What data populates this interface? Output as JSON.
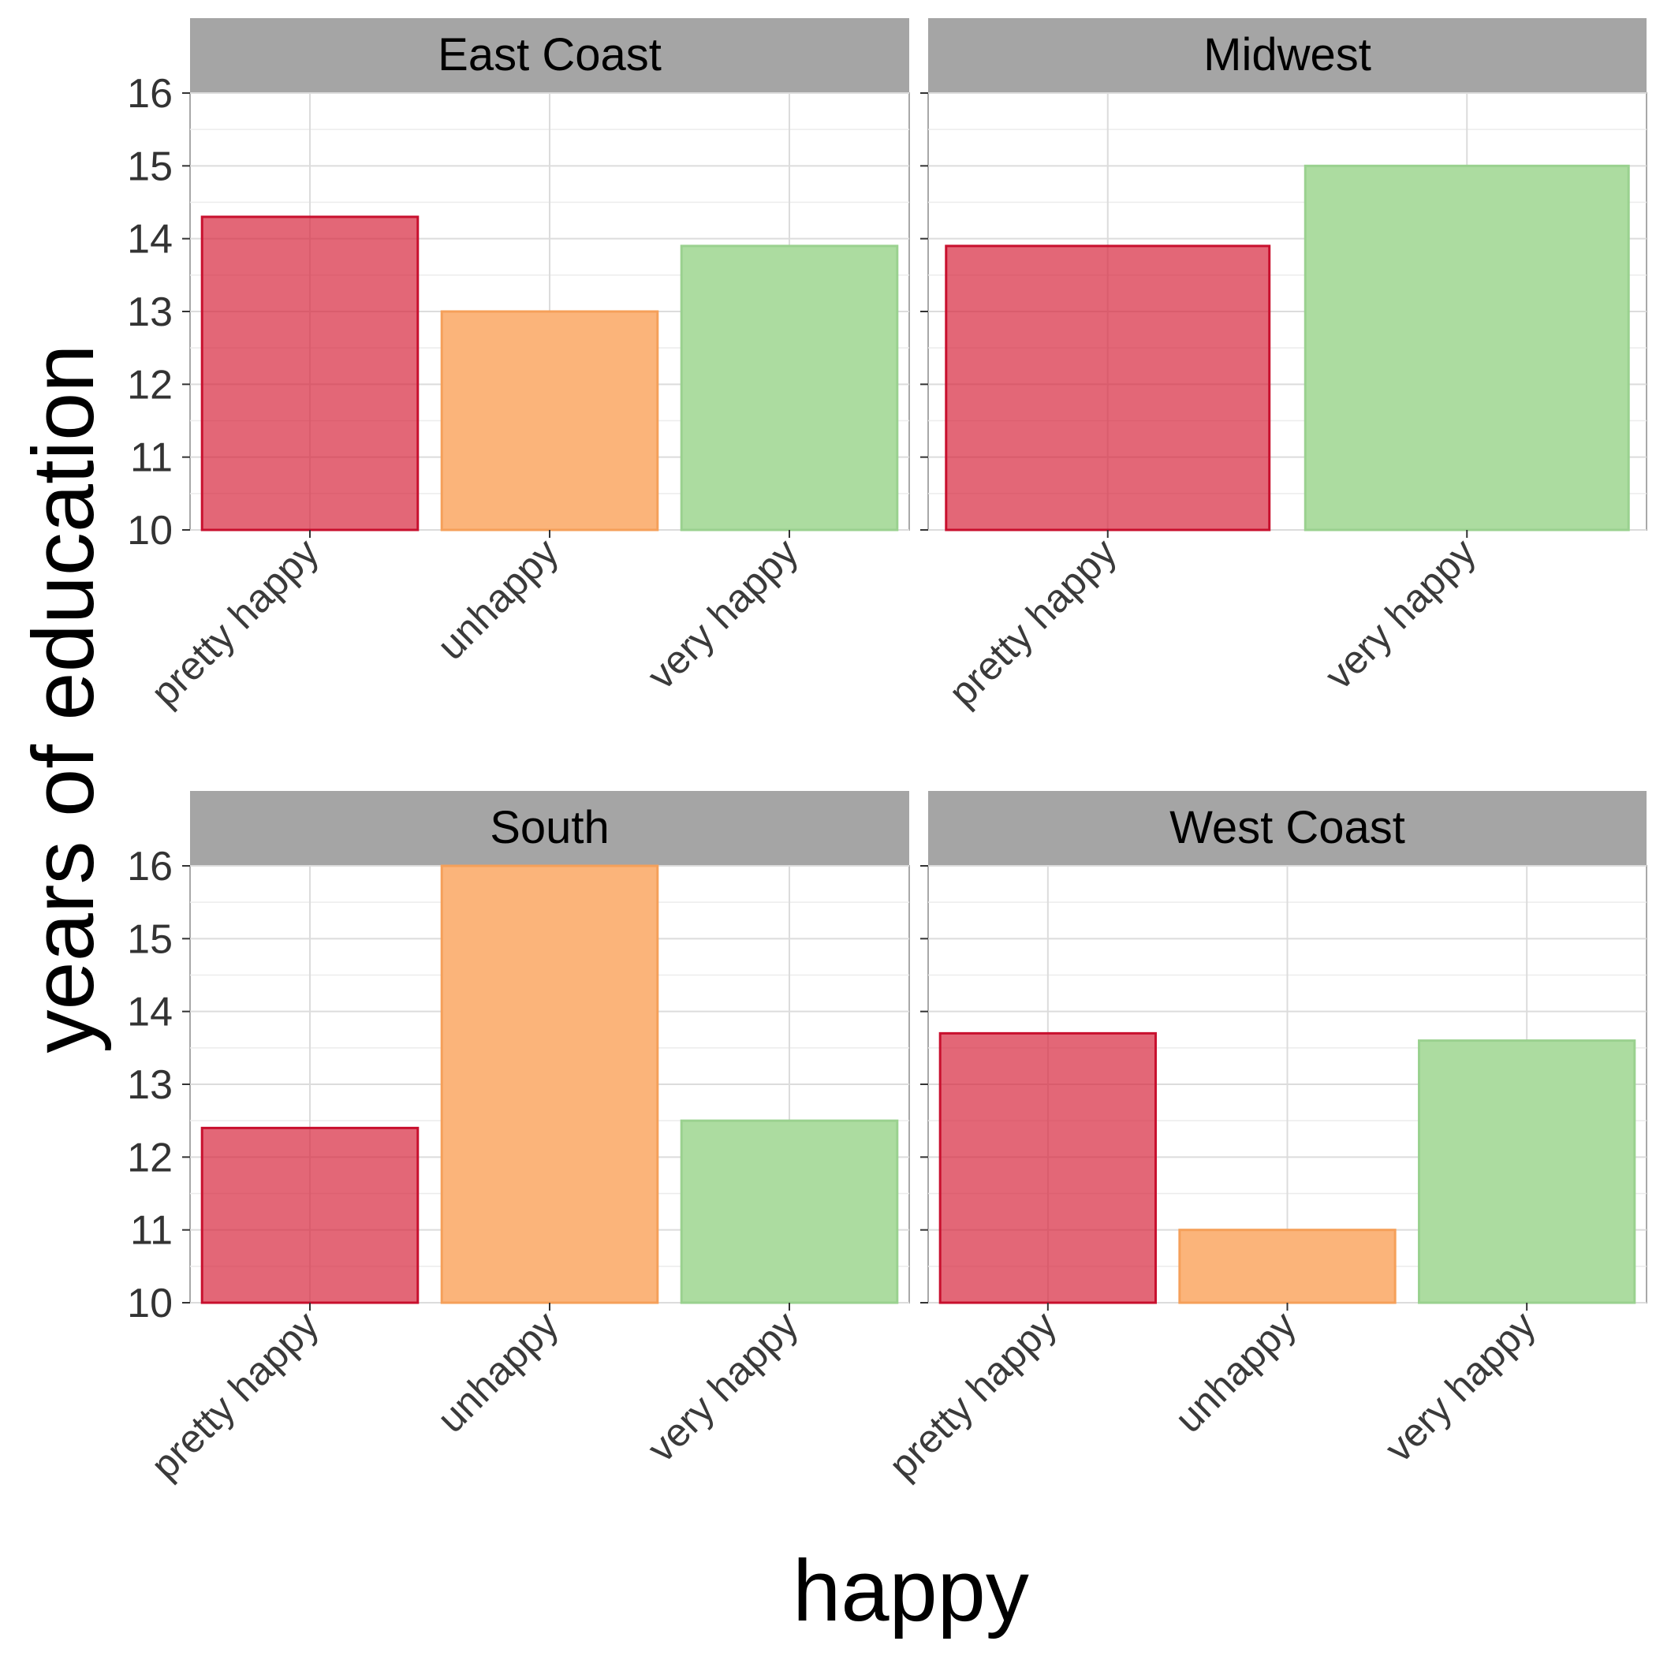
{
  "chart_data": {
    "type": "bar",
    "xlabel": "happy",
    "ylabel": "years of education",
    "ylim": [
      10,
      17
    ],
    "yticks": [
      10,
      11,
      12,
      13,
      14,
      15,
      16
    ],
    "grid": true,
    "colors": {
      "pretty happy": {
        "fill": "#d7263d",
        "stroke": "#c8102e"
      },
      "unhappy": {
        "fill": "#fbb47a",
        "stroke": "#f5a05a"
      },
      "very happy": {
        "fill": "#acdca0",
        "stroke": "#9ad18f"
      }
    },
    "facets": [
      {
        "name": "East Coast",
        "categories": [
          "pretty happy",
          "unhappy",
          "very happy"
        ],
        "values": [
          14.3,
          13.0,
          13.9
        ]
      },
      {
        "name": "Midwest",
        "categories": [
          "pretty happy",
          "very happy"
        ],
        "values": [
          13.9,
          15.0
        ]
      },
      {
        "name": "South",
        "categories": [
          "pretty happy",
          "unhappy",
          "very happy"
        ],
        "values": [
          12.4,
          16.0,
          12.5
        ]
      },
      {
        "name": "West Coast",
        "categories": [
          "pretty happy",
          "unhappy",
          "very happy"
        ],
        "values": [
          13.7,
          11.0,
          13.6
        ]
      }
    ]
  }
}
